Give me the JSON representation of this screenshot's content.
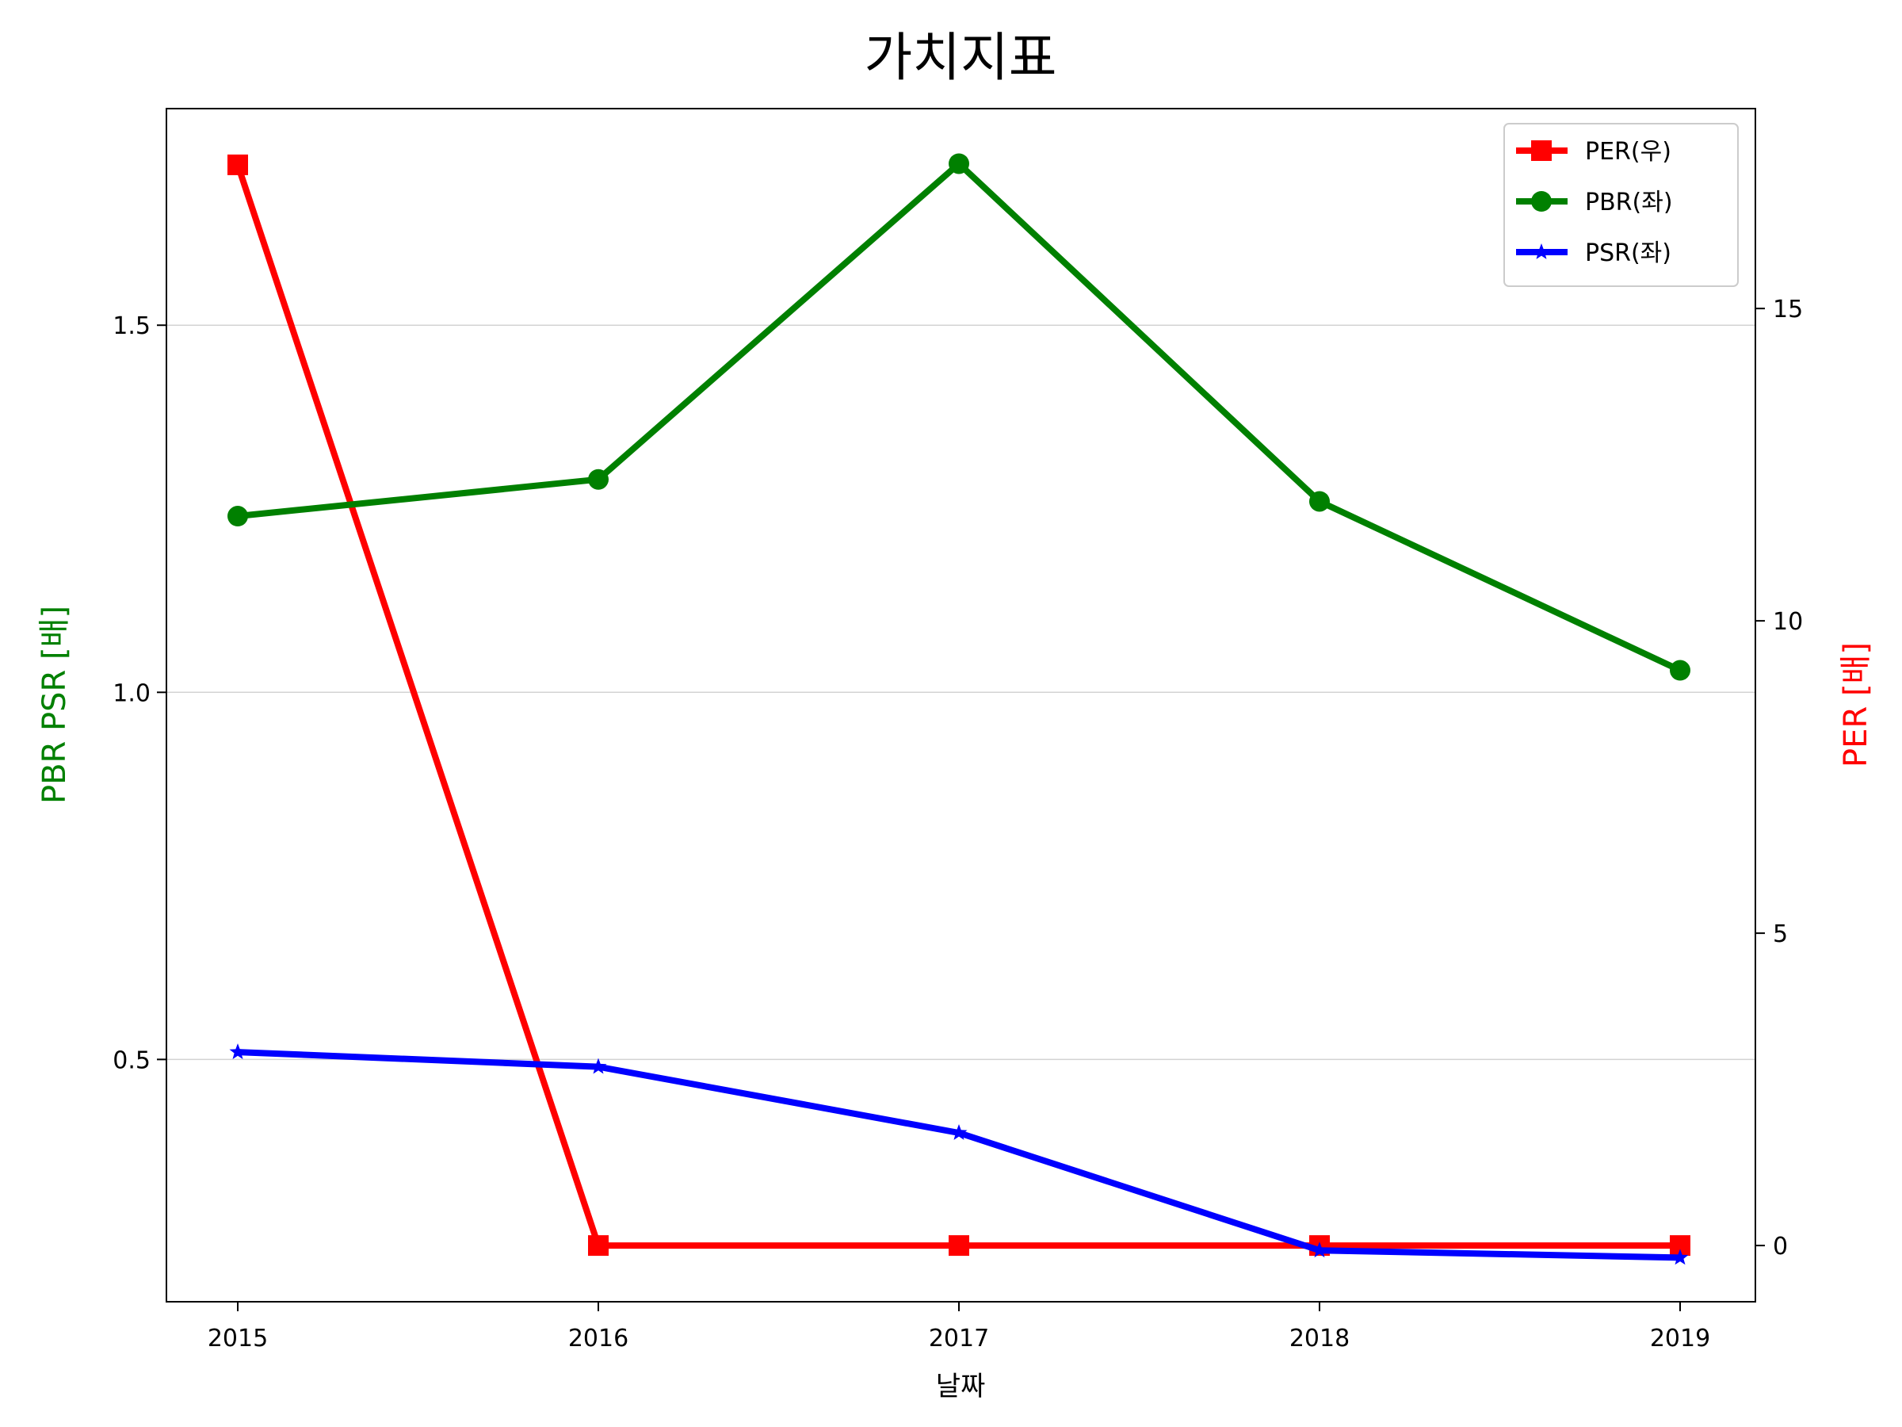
{
  "chart_data": {
    "type": "line",
    "title": "가치지표",
    "xlabel": "날짜",
    "ylabel_left": "PBR PSR [배]",
    "ylabel_right": "PER [배]",
    "categories": [
      "2015",
      "2016",
      "2017",
      "2018",
      "2019"
    ],
    "left_axis": {
      "ylim": [
        0.17,
        1.795
      ],
      "ticks": [
        0.5,
        1.0,
        1.5
      ],
      "tick_labels": [
        "0.5",
        "1.0",
        "1.5"
      ],
      "label_color": "#008000"
    },
    "right_axis": {
      "ylim": [
        -0.9,
        18.2
      ],
      "ticks": [
        0,
        5,
        10,
        15
      ],
      "tick_labels": [
        "0",
        "5",
        "10",
        "15"
      ],
      "label_color": "#ff0000"
    },
    "grid": "horizontal (left axis)",
    "legend_position": "upper right",
    "series": [
      {
        "name": "PER(우)",
        "axis": "right",
        "color": "#ff0000",
        "marker": "square",
        "values": [
          17.3,
          0.0,
          0.0,
          0.0,
          0.0
        ]
      },
      {
        "name": "PBR(좌)",
        "axis": "left",
        "color": "#008000",
        "marker": "circle",
        "values": [
          1.24,
          1.29,
          1.72,
          1.26,
          1.03
        ]
      },
      {
        "name": "PSR(좌)",
        "axis": "left",
        "color": "#0000ff",
        "marker": "star",
        "values": [
          0.51,
          0.49,
          0.4,
          0.24,
          0.23
        ]
      }
    ]
  }
}
